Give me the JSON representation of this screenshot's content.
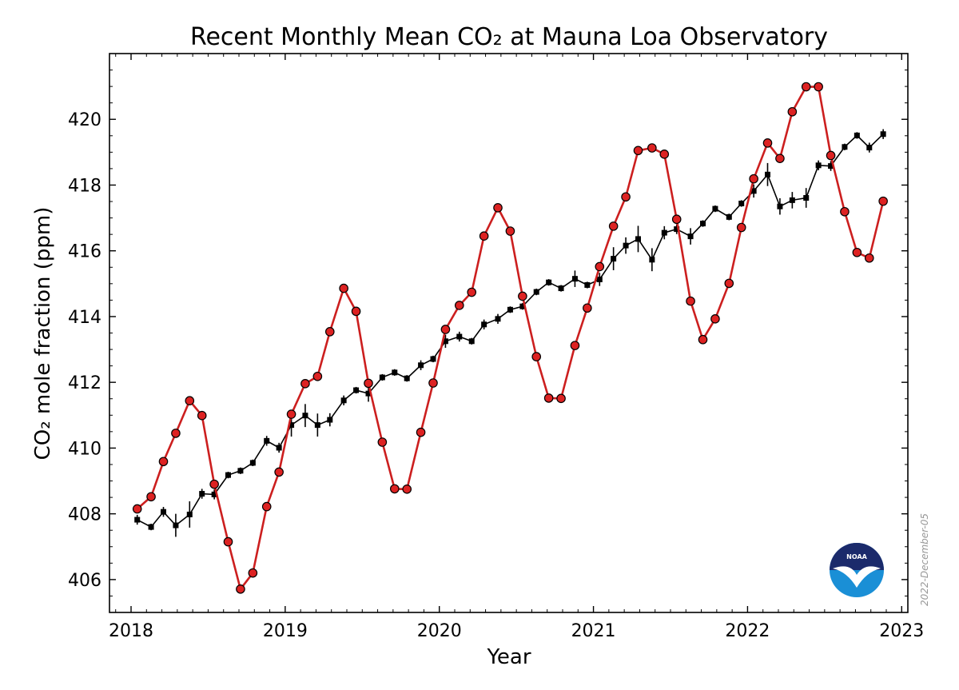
{
  "chart_data": {
    "type": "line",
    "title": "Recent Monthly Mean CO₂ at Mauna Loa Observatory",
    "xlabel": "Year",
    "ylabel": "CO₂ mole fraction (ppm)",
    "xlim": [
      2017.86,
      2023.04
    ],
    "ylim": [
      405.0,
      422.0
    ],
    "xticks": [
      2018,
      2019,
      2020,
      2021,
      2022,
      2023
    ],
    "yticks": [
      406,
      408,
      410,
      412,
      414,
      416,
      418,
      420
    ],
    "grid": false,
    "date_stamp": "2022-December-05",
    "colors": {
      "monthly_mean": "#cc1f1f",
      "marker_fill": "#dd2222",
      "deseasonalized": "#000000"
    },
    "series": [
      {
        "name": "",
        "marker": "circle",
        "x": [
          2018.04,
          2018.13,
          2018.21,
          2018.29,
          2018.38,
          2018.46,
          2018.54,
          2018.63,
          2018.71,
          2018.79,
          2018.88,
          2018.96,
          2019.04,
          2019.13,
          2019.21,
          2019.29,
          2019.38,
          2019.46,
          2019.54,
          2019.63,
          2019.71,
          2019.79,
          2019.88,
          2019.96,
          2020.04,
          2020.13,
          2020.21,
          2020.29,
          2020.38,
          2020.46,
          2020.54,
          2020.63,
          2020.71,
          2020.79,
          2020.88,
          2020.96,
          2021.04,
          2021.13,
          2021.21,
          2021.29,
          2021.38,
          2021.46,
          2021.54,
          2021.63,
          2021.71,
          2021.79,
          2021.88,
          2021.96,
          2022.04,
          2022.13,
          2022.21,
          2022.29,
          2022.38,
          2022.46,
          2022.54,
          2022.63,
          2022.71,
          2022.79,
          2022.88
        ],
        "values": [
          408.15,
          408.52,
          409.59,
          410.45,
          411.44,
          410.99,
          408.9,
          407.15,
          405.71,
          406.2,
          408.22,
          409.27,
          411.03,
          411.96,
          412.18,
          413.54,
          414.86,
          414.16,
          411.97,
          410.18,
          408.76,
          408.75,
          410.48,
          411.98,
          413.61,
          414.34,
          414.74,
          416.45,
          417.31,
          416.6,
          414.62,
          412.78,
          411.52,
          411.51,
          413.12,
          414.26,
          415.52,
          416.75,
          417.64,
          419.05,
          419.13,
          418.94,
          416.96,
          414.47,
          413.3,
          413.93,
          415.01,
          416.71,
          418.19,
          419.28,
          418.81,
          420.23,
          420.99,
          420.99,
          418.9,
          417.19,
          415.95,
          415.78,
          417.51
        ]
      },
      {
        "name": "",
        "marker": "square",
        "x": [
          2018.04,
          2018.13,
          2018.21,
          2018.29,
          2018.38,
          2018.46,
          2018.54,
          2018.63,
          2018.71,
          2018.79,
          2018.88,
          2018.96,
          2019.04,
          2019.13,
          2019.21,
          2019.29,
          2019.38,
          2019.46,
          2019.54,
          2019.63,
          2019.71,
          2019.79,
          2019.88,
          2019.96,
          2020.04,
          2020.13,
          2020.21,
          2020.29,
          2020.38,
          2020.46,
          2020.54,
          2020.63,
          2020.71,
          2020.79,
          2020.88,
          2020.96,
          2021.04,
          2021.13,
          2021.21,
          2021.29,
          2021.38,
          2021.46,
          2021.54,
          2021.63,
          2021.71,
          2021.79,
          2021.88,
          2021.96,
          2022.04,
          2022.13,
          2022.21,
          2022.29,
          2022.38,
          2022.46,
          2022.54,
          2022.63,
          2022.71,
          2022.79,
          2022.88
        ],
        "values": [
          407.82,
          407.6,
          408.06,
          407.65,
          407.98,
          408.61,
          408.59,
          409.18,
          409.31,
          409.55,
          410.22,
          410.01,
          410.7,
          410.99,
          410.7,
          410.86,
          411.45,
          411.76,
          411.66,
          412.15,
          412.3,
          412.12,
          412.52,
          412.71,
          413.25,
          413.39,
          413.25,
          413.76,
          413.93,
          414.21,
          414.31,
          414.75,
          415.04,
          414.86,
          415.15,
          414.96,
          415.13,
          415.76,
          416.16,
          416.36,
          415.73,
          416.55,
          416.66,
          416.44,
          416.83,
          417.28,
          417.03,
          417.44,
          417.82,
          418.32,
          417.35,
          417.54,
          417.61,
          418.6,
          418.58,
          419.16,
          419.51,
          419.14,
          419.55
        ],
        "uncertainty": [
          0.15,
          0.1,
          0.15,
          0.35,
          0.4,
          0.15,
          0.15,
          0.1,
          0.1,
          0.1,
          0.15,
          0.15,
          0.35,
          0.35,
          0.35,
          0.2,
          0.15,
          0.1,
          0.25,
          0.1,
          0.1,
          0.1,
          0.15,
          0.1,
          0.2,
          0.15,
          0.1,
          0.15,
          0.15,
          0.1,
          0.1,
          0.1,
          0.1,
          0.1,
          0.25,
          0.1,
          0.2,
          0.35,
          0.25,
          0.4,
          0.35,
          0.2,
          0.15,
          0.25,
          0.1,
          0.1,
          0.1,
          0.1,
          0.2,
          0.35,
          0.25,
          0.25,
          0.3,
          0.15,
          0.15,
          0.1,
          0.1,
          0.15,
          0.15
        ]
      }
    ]
  }
}
